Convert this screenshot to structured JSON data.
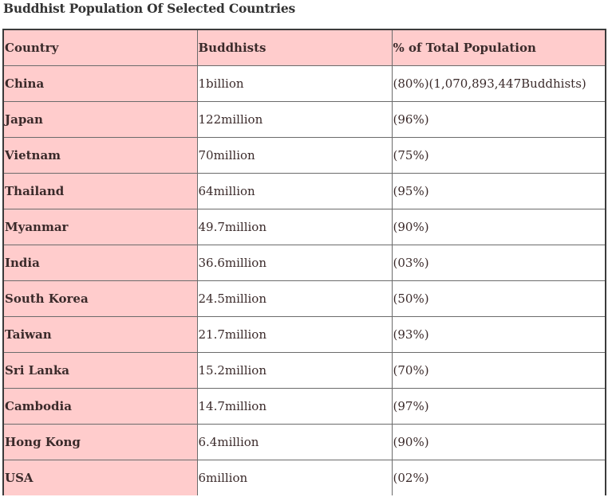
{
  "title": "Buddhist Population Of Selected Countries",
  "table": {
    "headers": [
      "Country",
      "Buddhists",
      "% of Total Population"
    ],
    "rows": [
      {
        "country": "China",
        "buddhists": "1billion",
        "percent": "(80%)(1,070,893,447Buddhists)"
      },
      {
        "country": "Japan",
        "buddhists": "122million",
        "percent": "(96%)"
      },
      {
        "country": "Vietnam",
        "buddhists": "70million",
        "percent": "(75%)"
      },
      {
        "country": "Thailand",
        "buddhists": "64million",
        "percent": "(95%)"
      },
      {
        "country": "Myanmar",
        "buddhists": "49.7million",
        "percent": "(90%)"
      },
      {
        "country": "India",
        "buddhists": "36.6million",
        "percent": "(03%)"
      },
      {
        "country": "South Korea",
        "buddhists": "24.5million",
        "percent": "(50%)"
      },
      {
        "country": "Taiwan",
        "buddhists": "21.7million",
        "percent": "(93%)"
      },
      {
        "country": "Sri Lanka",
        "buddhists": "15.2million",
        "percent": "(70%)"
      },
      {
        "country": "Cambodia",
        "buddhists": "14.7million",
        "percent": "(97%)"
      },
      {
        "country": "Hong Kong",
        "buddhists": "6.4million",
        "percent": "(90%)"
      },
      {
        "country": "USA",
        "buddhists": "6million",
        "percent": "(02%)"
      }
    ]
  },
  "colors": {
    "header_bg": "#ffcccc",
    "country_bg": "#ffcccc",
    "cell_bg": "#ffffff",
    "text": "#3a2a2a",
    "border": "#3b3b3b"
  }
}
